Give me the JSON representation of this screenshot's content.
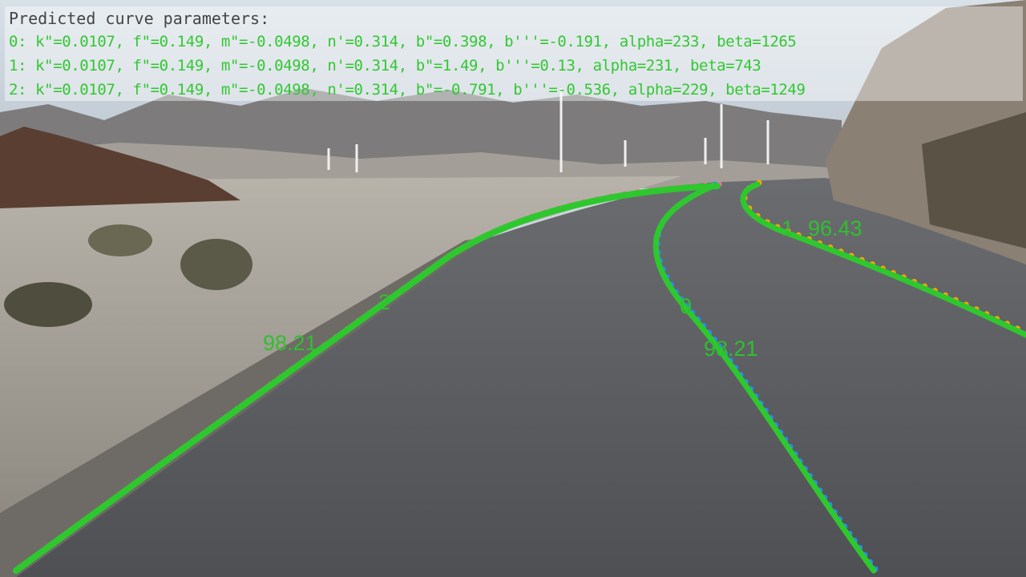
{
  "overlay": {
    "title": "Predicted curve parameters:",
    "lines": [
      "0: k\"=0.0107, f\"=0.149, m\"=-0.0498, n'=0.314, b\"=0.398, b'''=-0.191, alpha=233, beta=1265",
      "1: k\"=0.0107, f\"=0.149, m\"=-0.0498, n'=0.314, b\"=1.49, b'''=0.13, alpha=231, beta=743",
      "2: k\"=0.0107, f\"=0.149, m\"=-0.0498, n'=0.314, b\"=-0.791, b'''=-0.536, alpha=229, beta=1249"
    ]
  },
  "lanes": [
    {
      "id": "0",
      "score": "98.21",
      "color": "#1e90ff"
    },
    {
      "id": "1",
      "score": "96.43",
      "color": "#ffa500"
    },
    {
      "id": "2",
      "score": "98.21",
      "color": "#ff69b4"
    }
  ],
  "colors": {
    "prediction": "#2ec82e",
    "sky": "#c9d3dc",
    "road": "#5c5e62"
  }
}
